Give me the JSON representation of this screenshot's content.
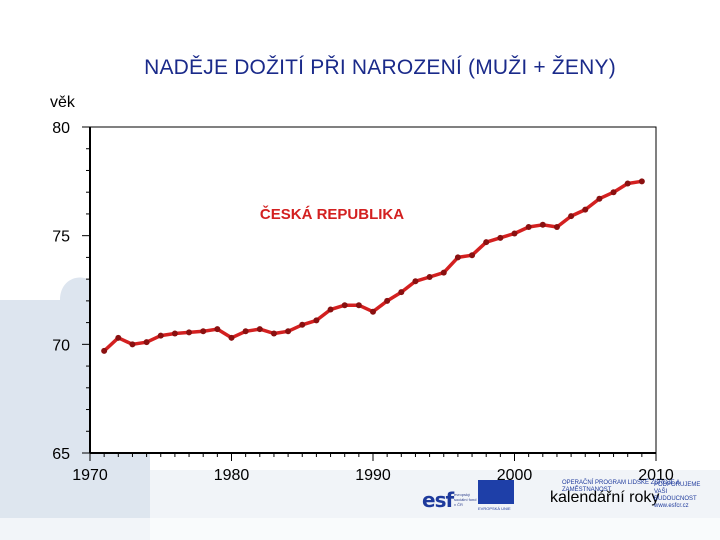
{
  "chart_data": {
    "type": "line",
    "title": "NADĚJE DOŽITÍ PŘI NAROZENÍ (MUŽI + ŽENY)",
    "ylabel": "věk",
    "xlabel": "kalendářní roky",
    "annotation": "ČESKÁ REPUBLIKA",
    "xlim": [
      1970,
      2010
    ],
    "ylim": [
      65,
      80
    ],
    "x_ticks": [
      1970,
      1980,
      1990,
      2000,
      2010
    ],
    "y_ticks": [
      65,
      70,
      75,
      80
    ],
    "grid": true,
    "series": [
      {
        "color": "#d32020",
        "x": [
          1971,
          1972,
          1973,
          1974,
          1975,
          1976,
          1977,
          1978,
          1979,
          1980,
          1981,
          1982,
          1983,
          1984,
          1985,
          1986,
          1987,
          1988,
          1989,
          1990,
          1991,
          1992,
          1993,
          1994,
          1995,
          1996,
          1997,
          1998,
          1999,
          2000,
          2001,
          2002,
          2003,
          2004,
          2005,
          2006,
          2007,
          2008,
          2009
        ],
        "values": [
          69.7,
          70.3,
          70.0,
          70.1,
          70.4,
          70.5,
          70.55,
          70.6,
          70.7,
          70.3,
          70.6,
          70.7,
          70.5,
          70.6,
          70.9,
          71.1,
          71.6,
          71.8,
          71.8,
          71.5,
          72.0,
          72.4,
          72.9,
          73.1,
          73.3,
          74.0,
          74.1,
          74.7,
          74.9,
          75.1,
          75.4,
          75.5,
          75.4,
          75.9,
          76.2,
          76.7,
          77.0,
          77.4,
          77.5
        ]
      }
    ]
  },
  "logos": {
    "esf": "esf",
    "esf_sub": "evropský sociální fond v ČR",
    "eu": "EVROPSKÁ UNIE",
    "op_left": "OPERAČNÍ PROGRAM LIDSKÉ ZDROJE A ZAMĚSTNANOST",
    "op_right": "PODPORUJEME VAŠI BUDOUCNOST www.esfcr.cz"
  }
}
